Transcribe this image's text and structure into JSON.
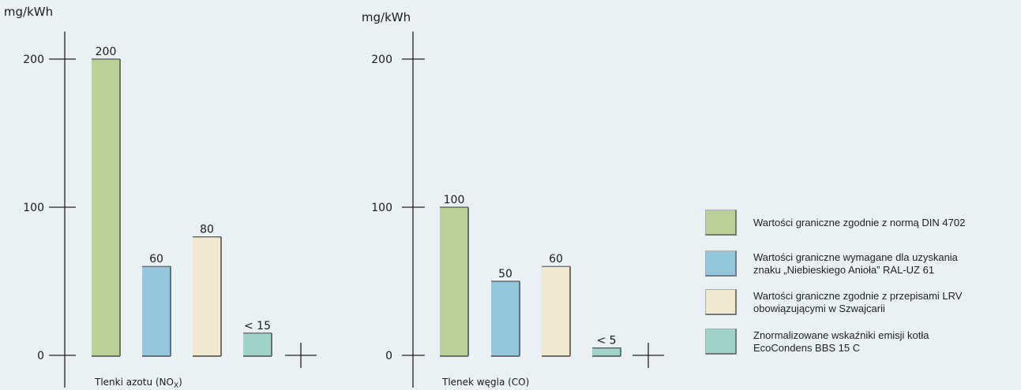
{
  "chart_data": [
    {
      "type": "bar",
      "ylabel": "mg/kWh",
      "xlabel": "Tlenki azotu (NO",
      "xlabel_sub": "X",
      "xlabel_suffix": ")",
      "ylim": [
        0,
        200
      ],
      "yticks": [
        0,
        100,
        200
      ],
      "categories": [
        "DIN 4702",
        "RAL-UZ 61",
        "LRV",
        "EcoCondens BBS 15 C"
      ],
      "values": [
        200,
        60,
        80,
        15
      ],
      "value_labels": [
        "200",
        "60",
        "80",
        "< 15"
      ],
      "colors": [
        "#b9d196",
        "#94c6df",
        "#f0e8cf",
        "#9fd2c8"
      ]
    },
    {
      "type": "bar",
      "ylabel": "mg/kWh",
      "xlabel": "Tlenek węgla (CO)",
      "ylim": [
        0,
        200
      ],
      "yticks": [
        0,
        100,
        200
      ],
      "categories": [
        "DIN 4702",
        "RAL-UZ 61",
        "LRV",
        "EcoCondens BBS 15 C"
      ],
      "values": [
        100,
        50,
        60,
        5
      ],
      "value_labels": [
        "100",
        "50",
        "60",
        "< 5"
      ],
      "colors": [
        "#b9d196",
        "#94c6df",
        "#f0e8cf",
        "#9fd2c8"
      ]
    }
  ],
  "legend": [
    {
      "color": "#b9d196",
      "lines": [
        "Wartości graniczne zgodnie z normą DIN 4702"
      ]
    },
    {
      "color": "#94c6df",
      "lines": [
        "Wartości graniczne wymagane dla uzyskania",
        "znaku „Niebieskiego Anioła” RAL-UZ 61"
      ]
    },
    {
      "color": "#f0e8cf",
      "lines": [
        "Wartości graniczne zgodnie z przepisami LRV",
        "obowiązującymi w Szwajcarii"
      ]
    },
    {
      "color": "#9fd2c8",
      "lines": [
        "Znormalizowane wskaźniki emisji kotła",
        "EcoCondens BBS 15 C"
      ]
    }
  ]
}
